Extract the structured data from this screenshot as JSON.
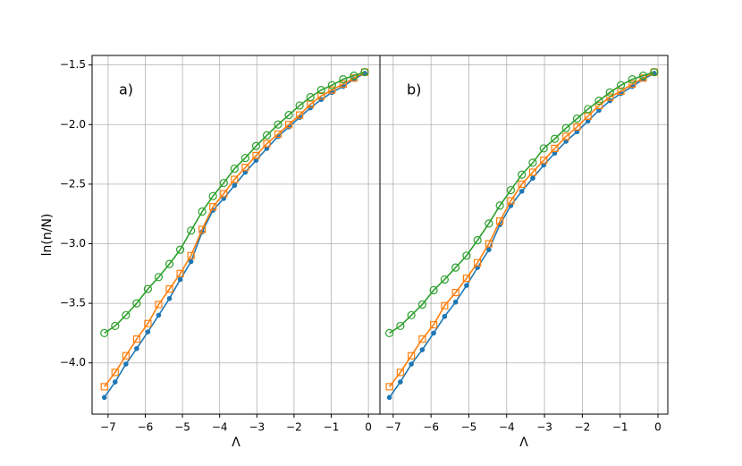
{
  "chart_data": [
    {
      "type": "line",
      "label": "a)",
      "xlabel": "Λ",
      "ylabel": "ln(n/N)",
      "x": [
        -7.1,
        -6.81,
        -6.52,
        -6.23,
        -5.93,
        -5.64,
        -5.35,
        -5.06,
        -4.77,
        -4.47,
        -4.18,
        -3.89,
        -3.6,
        -3.31,
        -3.02,
        -2.73,
        -2.43,
        -2.14,
        -1.85,
        -1.56,
        -1.27,
        -0.98,
        -0.68,
        -0.39,
        -0.1
      ],
      "series": [
        {
          "color": "#1f77b4",
          "marker": "dot",
          "values": [
            -4.29,
            -4.16,
            -4.01,
            -3.88,
            -3.74,
            -3.6,
            -3.46,
            -3.3,
            -3.15,
            -2.9,
            -2.72,
            -2.62,
            -2.51,
            -2.4,
            -2.3,
            -2.2,
            -2.1,
            -2.02,
            -1.94,
            -1.86,
            -1.79,
            -1.73,
            -1.68,
            -1.62,
            -1.57
          ]
        },
        {
          "color": "#ff7f0e",
          "marker": "square",
          "values": [
            -4.2,
            -4.08,
            -3.94,
            -3.8,
            -3.67,
            -3.51,
            -3.38,
            -3.25,
            -3.1,
            -2.88,
            -2.69,
            -2.58,
            -2.46,
            -2.36,
            -2.26,
            -2.16,
            -2.08,
            -2.0,
            -1.92,
            -1.83,
            -1.76,
            -1.71,
            -1.66,
            -1.61,
            -1.56
          ]
        },
        {
          "color": "#2ca02c",
          "marker": "circle",
          "values": [
            -3.75,
            -3.69,
            -3.6,
            -3.5,
            -3.38,
            -3.28,
            -3.17,
            -3.05,
            -2.89,
            -2.73,
            -2.6,
            -2.49,
            -2.37,
            -2.28,
            -2.18,
            -2.09,
            -2.0,
            -1.92,
            -1.84,
            -1.77,
            -1.71,
            -1.67,
            -1.62,
            -1.59,
            -1.56
          ]
        }
      ],
      "xlim": [
        -7.43,
        0.31
      ],
      "ylim": [
        -4.43,
        -1.42
      ],
      "xticks": [
        {
          "value": -7,
          "label": "−7"
        },
        {
          "value": -6,
          "label": "−6"
        },
        {
          "value": -5,
          "label": "−5"
        },
        {
          "value": -4,
          "label": "−4"
        },
        {
          "value": -3,
          "label": "−3"
        },
        {
          "value": -2,
          "label": "−2"
        },
        {
          "value": -1,
          "label": "−1"
        },
        0
      ],
      "yticks": [
        {
          "value": -4.0,
          "label": "−4.0"
        },
        {
          "value": -3.5,
          "label": "−3.5"
        },
        {
          "value": -3.0,
          "label": "−3.0"
        },
        {
          "value": -2.5,
          "label": "−2.5"
        },
        {
          "value": -2.0,
          "label": "−2.0"
        },
        {
          "value": -1.5,
          "label": "−1.5"
        }
      ],
      "grid": true
    },
    {
      "type": "line",
      "label": "b)",
      "xlabel": "Λ",
      "x": [
        -7.1,
        -6.81,
        -6.52,
        -6.23,
        -5.93,
        -5.64,
        -5.35,
        -5.06,
        -4.77,
        -4.47,
        -4.18,
        -3.89,
        -3.6,
        -3.31,
        -3.02,
        -2.73,
        -2.43,
        -2.14,
        -1.85,
        -1.56,
        -1.27,
        -0.98,
        -0.68,
        -0.39,
        -0.1
      ],
      "series": [
        {
          "color": "#1f77b4",
          "marker": "dot",
          "values": [
            -4.29,
            -4.16,
            -4.01,
            -3.89,
            -3.75,
            -3.61,
            -3.49,
            -3.35,
            -3.2,
            -3.05,
            -2.84,
            -2.68,
            -2.56,
            -2.45,
            -2.34,
            -2.24,
            -2.14,
            -2.06,
            -1.97,
            -1.88,
            -1.8,
            -1.74,
            -1.68,
            -1.62,
            -1.57
          ]
        },
        {
          "color": "#ff7f0e",
          "marker": "square",
          "values": [
            -4.2,
            -4.08,
            -3.94,
            -3.8,
            -3.68,
            -3.52,
            -3.41,
            -3.29,
            -3.16,
            -3.0,
            -2.81,
            -2.64,
            -2.5,
            -2.4,
            -2.3,
            -2.2,
            -2.1,
            -2.02,
            -1.93,
            -1.84,
            -1.77,
            -1.72,
            -1.66,
            -1.61,
            -1.56
          ]
        },
        {
          "color": "#2ca02c",
          "marker": "circle",
          "values": [
            -3.75,
            -3.69,
            -3.6,
            -3.51,
            -3.39,
            -3.3,
            -3.2,
            -3.1,
            -2.97,
            -2.83,
            -2.68,
            -2.55,
            -2.42,
            -2.32,
            -2.2,
            -2.12,
            -2.03,
            -1.95,
            -1.87,
            -1.8,
            -1.73,
            -1.67,
            -1.62,
            -1.59,
            -1.56
          ]
        }
      ],
      "xlim": [
        -7.35,
        0.26
      ],
      "ylim": [
        -4.43,
        -1.42
      ],
      "xticks": [
        {
          "value": -7,
          "label": "−7"
        },
        {
          "value": -6,
          "label": "−6"
        },
        {
          "value": -5,
          "label": "−5"
        },
        {
          "value": -4,
          "label": "−4"
        },
        {
          "value": -3,
          "label": "−3"
        },
        {
          "value": -2,
          "label": "−2"
        },
        {
          "value": -1,
          "label": "−1"
        },
        0
      ],
      "grid": true
    }
  ]
}
